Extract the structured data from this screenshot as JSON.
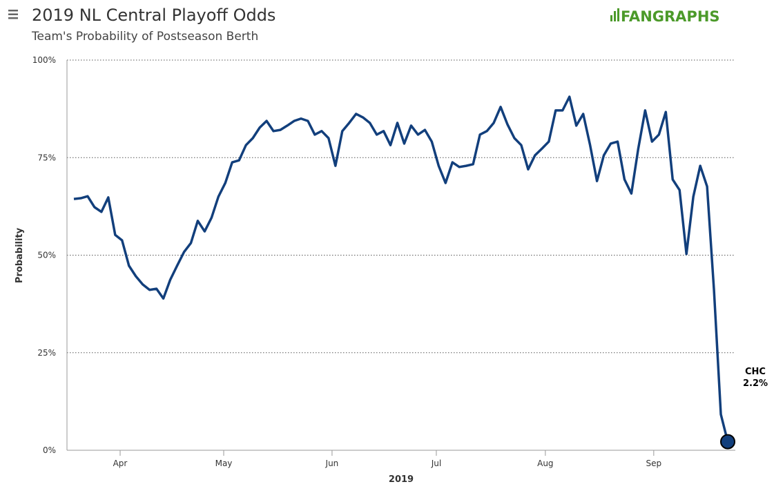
{
  "logo": "FANGRAPHS",
  "chart_data": {
    "type": "line",
    "title": "2019 NL Central Playoff Odds",
    "subtitle": "Team's Probability of Postseason Berth",
    "x_label": "2019",
    "y_label": "Probability",
    "xlim": [
      0,
      95
    ],
    "xticks": [
      {
        "value": 6.72,
        "label": "Apr"
      },
      {
        "value": 21.77,
        "label": "May"
      },
      {
        "value": 37.51,
        "label": "Jun"
      },
      {
        "value": 52.66,
        "label": "Jul"
      },
      {
        "value": 68.5,
        "label": "Aug"
      },
      {
        "value": 84.25,
        "label": "Sep"
      }
    ],
    "ylim": [
      0,
      100
    ],
    "yticks": [
      {
        "value": 0,
        "label": "0%"
      },
      {
        "value": 25,
        "label": "25%"
      },
      {
        "value": 50,
        "label": "50%"
      },
      {
        "value": 75,
        "label": "75%"
      },
      {
        "value": 100,
        "label": "100%"
      }
    ],
    "grid": true,
    "series": [
      {
        "name": "CHC",
        "color": "#123f7c",
        "values": [
          64.4,
          64.6,
          65.1,
          62.3,
          61.1,
          64.8,
          55.2,
          53.8,
          47.3,
          44.6,
          42.5,
          41.1,
          41.4,
          38.9,
          43.7,
          47.3,
          50.8,
          53.1,
          58.8,
          56.1,
          59.6,
          65.0,
          68.5,
          73.8,
          74.3,
          78.2,
          80.0,
          82.7,
          84.4,
          81.8,
          82.1,
          83.2,
          84.4,
          85.0,
          84.4,
          80.9,
          81.8,
          80.0,
          72.9,
          81.8,
          83.9,
          86.2,
          85.3,
          83.9,
          80.9,
          81.8,
          78.2,
          83.9,
          78.6,
          83.2,
          80.9,
          82.1,
          79.1,
          72.9,
          68.5,
          73.8,
          72.6,
          72.9,
          73.3,
          80.9,
          81.8,
          83.9,
          88.0,
          83.5,
          80.0,
          78.2,
          72.0,
          75.6,
          77.3,
          79.1,
          87.1,
          87.1,
          90.6,
          83.2,
          86.2,
          78.2,
          69.0,
          75.6,
          78.6,
          79.1,
          69.4,
          65.8,
          77.3,
          87.1,
          79.1,
          80.9,
          86.7,
          69.4,
          66.7,
          50.3,
          65.0,
          72.9,
          67.6,
          41.1,
          9.2,
          2.2
        ],
        "end_label": "2.2%"
      }
    ]
  }
}
